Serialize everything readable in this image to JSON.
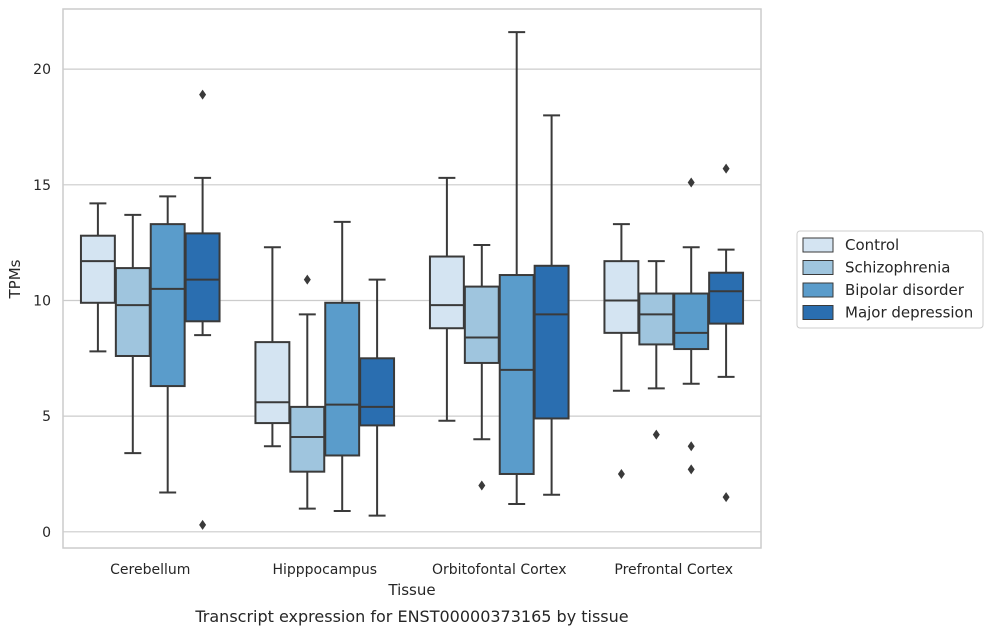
{
  "chart_data": {
    "type": "box",
    "title": "Transcript expression for ENST00000373165 by tissue",
    "xlabel": "Tissue",
    "ylabel": "TPMs",
    "ylim": [
      -0.7,
      22.6
    ],
    "yticks": [
      0,
      5,
      10,
      15,
      20
    ],
    "grid": true,
    "legend_position": "right",
    "categories": [
      "Cerebellum",
      "Hipppocampus",
      "Orbitofontal Cortex",
      "Prefrontal Cortex"
    ],
    "series": [
      {
        "name": "Control",
        "color": "#d4e4f2",
        "boxes": [
          {
            "whisker_low": 7.8,
            "q1": 9.9,
            "median": 11.7,
            "q3": 12.8,
            "whisker_high": 14.2,
            "outliers": []
          },
          {
            "whisker_low": 3.7,
            "q1": 4.7,
            "median": 5.6,
            "q3": 8.2,
            "whisker_high": 12.3,
            "outliers": []
          },
          {
            "whisker_low": 4.8,
            "q1": 8.8,
            "median": 9.8,
            "q3": 11.9,
            "whisker_high": 15.3,
            "outliers": []
          },
          {
            "whisker_low": 6.1,
            "q1": 8.6,
            "median": 10.0,
            "q3": 11.7,
            "whisker_high": 13.3,
            "outliers": [
              2.5
            ]
          }
        ]
      },
      {
        "name": "Schizophrenia",
        "color": "#9fc5de",
        "boxes": [
          {
            "whisker_low": 3.4,
            "q1": 7.6,
            "median": 9.8,
            "q3": 11.4,
            "whisker_high": 13.7,
            "outliers": []
          },
          {
            "whisker_low": 1.0,
            "q1": 2.6,
            "median": 4.1,
            "q3": 5.4,
            "whisker_high": 9.4,
            "outliers": [
              10.9
            ]
          },
          {
            "whisker_low": 4.0,
            "q1": 7.3,
            "median": 8.4,
            "q3": 10.6,
            "whisker_high": 12.4,
            "outliers": [
              2.0
            ]
          },
          {
            "whisker_low": 6.2,
            "q1": 8.1,
            "median": 9.4,
            "q3": 10.3,
            "whisker_high": 11.7,
            "outliers": [
              4.2
            ]
          }
        ]
      },
      {
        "name": "Bipolar disorder",
        "color": "#5a9ccb",
        "boxes": [
          {
            "whisker_low": 1.7,
            "q1": 6.3,
            "median": 10.5,
            "q3": 13.3,
            "whisker_high": 14.5,
            "outliers": []
          },
          {
            "whisker_low": 0.9,
            "q1": 3.3,
            "median": 5.5,
            "q3": 9.9,
            "whisker_high": 13.4,
            "outliers": []
          },
          {
            "whisker_low": 1.2,
            "q1": 2.5,
            "median": 7.0,
            "q3": 11.1,
            "whisker_high": 21.6,
            "outliers": []
          },
          {
            "whisker_low": 6.4,
            "q1": 7.9,
            "median": 8.6,
            "q3": 10.3,
            "whisker_high": 12.3,
            "outliers": [
              15.1,
              3.7,
              2.7
            ]
          }
        ]
      },
      {
        "name": "Major depression",
        "color": "#2a6eb0",
        "boxes": [
          {
            "whisker_low": 8.5,
            "q1": 9.1,
            "median": 10.9,
            "q3": 12.9,
            "whisker_high": 15.3,
            "outliers": [
              18.9,
              0.3
            ]
          },
          {
            "whisker_low": 0.7,
            "q1": 4.6,
            "median": 5.4,
            "q3": 7.5,
            "whisker_high": 10.9,
            "outliers": []
          },
          {
            "whisker_low": 1.6,
            "q1": 4.9,
            "median": 9.4,
            "q3": 11.5,
            "whisker_high": 18.0,
            "outliers": []
          },
          {
            "whisker_low": 6.7,
            "q1": 9.0,
            "median": 10.4,
            "q3": 11.2,
            "whisker_high": 12.2,
            "outliers": [
              15.7,
              1.5
            ]
          }
        ]
      }
    ]
  }
}
